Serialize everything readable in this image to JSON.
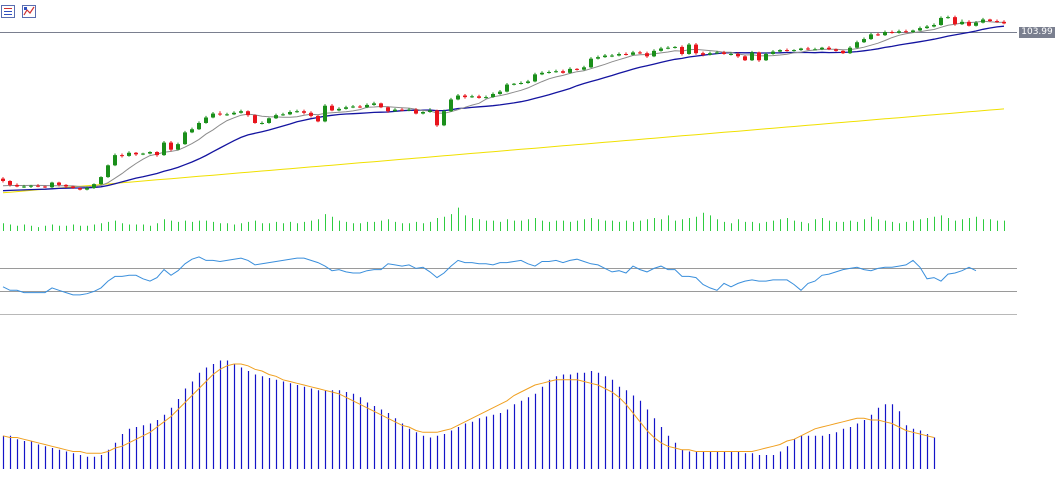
{
  "toolbar": {
    "buttons": [
      {
        "icon": "indicator-list-icon"
      },
      {
        "icon": "chart-properties-icon"
      }
    ]
  },
  "colors": {
    "bull": "#1a8f1a",
    "bear": "#e8141c",
    "ma_fast": "#8c8c8c",
    "ma_mid": "#1414a0",
    "ma_slow": "#f0e000",
    "volume": "#2ecc40",
    "rsi": "#3a8fdc",
    "level_lines": "#9a9a9a",
    "histogram": "#1414c8",
    "signal": "#f0a020",
    "price_line": "#7a7f8f"
  },
  "chart_data": {
    "type": "candlestick",
    "last_price_label": "103.99",
    "candles": [
      [
        40,
        37,
        35,
        42
      ],
      [
        37,
        32,
        30,
        38
      ],
      [
        32,
        30,
        29,
        34
      ],
      [
        30,
        30,
        28,
        32
      ],
      [
        30,
        31,
        28,
        32
      ],
      [
        31,
        30,
        29,
        33
      ],
      [
        30,
        29,
        28,
        31
      ],
      [
        29,
        35,
        28,
        36
      ],
      [
        35,
        32,
        30,
        36
      ],
      [
        32,
        30,
        28,
        33
      ],
      [
        30,
        28,
        27,
        31
      ],
      [
        28,
        26,
        25,
        29
      ],
      [
        26,
        28,
        25,
        30
      ],
      [
        28,
        33,
        27,
        34
      ],
      [
        33,
        42,
        32,
        43
      ],
      [
        42,
        57,
        41,
        58
      ],
      [
        57,
        70,
        56,
        72
      ],
      [
        70,
        69,
        67,
        72
      ],
      [
        69,
        73,
        68,
        75
      ],
      [
        73,
        71,
        69,
        74
      ],
      [
        71,
        72,
        70,
        73
      ],
      [
        72,
        74,
        71,
        75
      ],
      [
        74,
        70,
        68,
        75
      ],
      [
        70,
        86,
        69,
        88
      ],
      [
        86,
        77,
        75,
        88
      ],
      [
        77,
        84,
        76,
        86
      ],
      [
        84,
        99,
        83,
        101
      ],
      [
        99,
        103,
        98,
        105
      ],
      [
        103,
        111,
        102,
        113
      ],
      [
        111,
        118,
        110,
        120
      ],
      [
        118,
        123,
        117,
        125
      ],
      [
        123,
        122,
        120,
        126
      ],
      [
        122,
        122,
        120,
        124
      ],
      [
        122,
        124,
        121,
        126
      ],
      [
        124,
        126,
        123,
        128
      ],
      [
        126,
        121,
        119,
        127
      ],
      [
        121,
        111,
        110,
        122
      ],
      [
        111,
        111,
        109,
        113
      ],
      [
        111,
        117,
        110,
        118
      ],
      [
        117,
        121,
        116,
        123
      ],
      [
        121,
        122,
        120,
        124
      ],
      [
        122,
        125,
        121,
        127
      ],
      [
        125,
        126,
        124,
        128
      ],
      [
        126,
        124,
        122,
        128
      ],
      [
        124,
        120,
        118,
        126
      ],
      [
        120,
        113,
        112,
        121
      ],
      [
        113,
        133,
        112,
        135
      ],
      [
        133,
        127,
        126,
        135
      ],
      [
        127,
        129,
        126,
        131
      ],
      [
        129,
        131,
        128,
        133
      ],
      [
        131,
        132,
        130,
        134
      ],
      [
        132,
        131,
        130,
        134
      ],
      [
        131,
        134,
        130,
        136
      ],
      [
        134,
        136,
        133,
        138
      ],
      [
        136,
        131,
        130,
        137
      ],
      [
        131,
        126,
        124,
        132
      ],
      [
        126,
        128,
        125,
        130
      ],
      [
        128,
        127,
        126,
        130
      ],
      [
        127,
        128,
        126,
        130
      ],
      [
        128,
        123,
        122,
        130
      ],
      [
        123,
        125,
        122,
        126
      ],
      [
        125,
        127,
        124,
        130
      ],
      [
        127,
        108,
        106,
        128
      ],
      [
        108,
        126,
        107,
        128
      ],
      [
        126,
        141,
        125,
        143
      ],
      [
        141,
        146,
        140,
        148
      ],
      [
        146,
        144,
        142,
        148
      ],
      [
        144,
        145,
        143,
        147
      ],
      [
        145,
        143,
        142,
        147
      ],
      [
        143,
        144,
        142,
        146
      ],
      [
        144,
        148,
        143,
        150
      ],
      [
        148,
        151,
        147,
        153
      ],
      [
        151,
        160,
        150,
        162
      ],
      [
        160,
        161,
        159,
        162
      ],
      [
        161,
        162,
        160,
        164
      ],
      [
        162,
        164,
        161,
        166
      ],
      [
        164,
        173,
        163,
        175
      ],
      [
        173,
        175,
        172,
        177
      ],
      [
        175,
        176,
        174,
        178
      ],
      [
        176,
        177,
        175,
        179
      ],
      [
        177,
        175,
        174,
        179
      ],
      [
        175,
        180,
        174,
        182
      ],
      [
        180,
        179,
        178,
        181
      ],
      [
        179,
        182,
        178,
        184
      ],
      [
        182,
        193,
        181,
        195
      ],
      [
        193,
        195,
        192,
        197
      ],
      [
        195,
        197,
        194,
        199
      ],
      [
        197,
        197,
        195,
        199
      ],
      [
        197,
        199,
        196,
        201
      ],
      [
        199,
        198,
        197,
        201
      ],
      [
        198,
        201,
        197,
        203
      ],
      [
        201,
        200,
        199,
        203
      ],
      [
        200,
        196,
        194,
        202
      ],
      [
        196,
        203,
        195,
        205
      ],
      [
        203,
        206,
        202,
        208
      ],
      [
        206,
        207,
        205,
        209
      ],
      [
        207,
        208,
        206,
        209
      ],
      [
        208,
        199,
        197,
        210
      ],
      [
        199,
        211,
        198,
        213
      ],
      [
        211,
        200,
        198,
        213
      ],
      [
        200,
        198,
        196,
        202
      ],
      [
        198,
        200,
        197,
        202
      ],
      [
        200,
        201,
        199,
        203
      ],
      [
        201,
        199,
        198,
        203
      ],
      [
        199,
        199,
        197,
        201
      ],
      [
        199,
        196,
        194,
        201
      ],
      [
        196,
        191,
        190,
        197
      ],
      [
        191,
        201,
        190,
        203
      ],
      [
        201,
        191,
        189,
        202
      ],
      [
        191,
        199,
        190,
        201
      ],
      [
        199,
        202,
        198,
        204
      ],
      [
        202,
        204,
        201,
        205
      ],
      [
        204,
        203,
        202,
        206
      ],
      [
        203,
        204,
        202,
        205
      ],
      [
        204,
        206,
        203,
        207
      ],
      [
        206,
        205,
        204,
        208
      ],
      [
        205,
        205,
        204,
        207
      ],
      [
        205,
        207,
        204,
        208
      ],
      [
        207,
        205,
        204,
        209
      ],
      [
        205,
        203,
        202,
        206
      ],
      [
        203,
        200,
        199,
        204
      ],
      [
        200,
        207,
        199,
        209
      ],
      [
        207,
        214,
        206,
        216
      ],
      [
        214,
        218,
        213,
        220
      ],
      [
        218,
        224,
        217,
        226
      ],
      [
        224,
        223,
        222,
        226
      ],
      [
        223,
        227,
        222,
        229
      ],
      [
        227,
        226,
        225,
        229
      ],
      [
        226,
        228,
        225,
        230
      ],
      [
        228,
        227,
        226,
        230
      ],
      [
        227,
        229,
        226,
        230
      ],
      [
        229,
        232,
        228,
        234
      ],
      [
        232,
        234,
        231,
        236
      ],
      [
        234,
        236,
        233,
        238
      ],
      [
        236,
        245,
        235,
        247
      ],
      [
        245,
        246,
        244,
        248
      ],
      [
        246,
        237,
        235,
        248
      ],
      [
        237,
        240,
        236,
        243
      ],
      [
        240,
        235,
        234,
        242
      ],
      [
        235,
        239,
        234,
        241
      ],
      [
        239,
        243,
        238,
        245
      ],
      [
        243,
        241,
        240,
        244
      ],
      [
        241,
        240,
        239,
        243
      ],
      [
        240,
        238,
        237,
        242
      ]
    ],
    "volume": [
      6,
      5,
      4,
      5,
      4,
      3,
      4,
      5,
      4,
      4,
      5,
      4,
      4,
      5,
      6,
      7,
      8,
      6,
      5,
      5,
      5,
      4,
      6,
      9,
      8,
      7,
      8,
      7,
      8,
      8,
      7,
      6,
      6,
      5,
      6,
      7,
      8,
      6,
      6,
      7,
      6,
      7,
      6,
      7,
      8,
      9,
      13,
      11,
      8,
      7,
      6,
      6,
      7,
      7,
      8,
      9,
      7,
      6,
      6,
      7,
      6,
      7,
      10,
      11,
      13,
      18,
      12,
      10,
      9,
      8,
      8,
      7,
      9,
      8,
      8,
      9,
      10,
      8,
      7,
      8,
      8,
      7,
      8,
      9,
      10,
      9,
      8,
      8,
      7,
      8,
      7,
      8,
      9,
      10,
      9,
      12,
      8,
      9,
      10,
      11,
      14,
      12,
      9,
      7,
      6,
      9,
      7,
      7,
      6,
      7,
      8,
      9,
      10,
      8,
      7,
      6,
      9,
      10,
      8,
      7,
      7,
      8,
      7,
      9,
      11,
      9,
      8,
      7,
      6,
      7,
      8,
      9,
      10,
      11,
      12,
      10,
      8,
      9,
      10,
      11,
      9,
      9,
      8,
      8
    ],
    "rsi": [
      52,
      55,
      55,
      57,
      57,
      57,
      57,
      53,
      55,
      57,
      59,
      59,
      58,
      56,
      53,
      47,
      43,
      43,
      42,
      42,
      45,
      47,
      44,
      37,
      42,
      38,
      32,
      28,
      26,
      29,
      29,
      30,
      29,
      28,
      27,
      29,
      33,
      32,
      31,
      30,
      29,
      28,
      27,
      27,
      29,
      31,
      34,
      38,
      37,
      39,
      40,
      40,
      38,
      37,
      37,
      32,
      33,
      34,
      33,
      36,
      35,
      39,
      44,
      40,
      34,
      29,
      31,
      31,
      32,
      32,
      33,
      31,
      31,
      30,
      29,
      32,
      34,
      30,
      30,
      29,
      31,
      29,
      28,
      30,
      32,
      33,
      36,
      39,
      38,
      40,
      34,
      37,
      39,
      36,
      34,
      37,
      37,
      43,
      43,
      44,
      50,
      53,
      55,
      49,
      52,
      49,
      47,
      46,
      47,
      47,
      46,
      46,
      46,
      50,
      55,
      49,
      47,
      42,
      41,
      39,
      37,
      36,
      35,
      37,
      38,
      36,
      35,
      35,
      34,
      33,
      29,
      35,
      45,
      44,
      47,
      41,
      40,
      38,
      35,
      38
    ],
    "rsi_levels": [
      70,
      30
    ],
    "histogram": [
      0.19,
      0.19,
      0.17,
      0.16,
      0.16,
      0.14,
      0.13,
      0.12,
      0.11,
      0.1,
      0.09,
      0.08,
      0.07,
      0.07,
      0.08,
      0.11,
      0.15,
      0.2,
      0.23,
      0.24,
      0.25,
      0.26,
      0.28,
      0.31,
      0.35,
      0.4,
      0.46,
      0.5,
      0.55,
      0.58,
      0.6,
      0.62,
      0.62,
      0.6,
      0.58,
      0.56,
      0.54,
      0.53,
      0.52,
      0.51,
      0.5,
      0.49,
      0.48,
      0.47,
      0.46,
      0.45,
      0.45,
      0.45,
      0.45,
      0.44,
      0.43,
      0.41,
      0.38,
      0.36,
      0.34,
      0.32,
      0.29,
      0.26,
      0.23,
      0.21,
      0.19,
      0.18,
      0.19,
      0.2,
      0.22,
      0.24,
      0.26,
      0.27,
      0.29,
      0.3,
      0.31,
      0.32,
      0.34,
      0.37,
      0.39,
      0.41,
      0.43,
      0.47,
      0.51,
      0.53,
      0.54,
      0.54,
      0.55,
      0.55,
      0.56,
      0.55,
      0.53,
      0.51,
      0.47,
      0.45,
      0.42,
      0.39,
      0.34,
      0.29,
      0.24,
      0.19,
      0.15,
      0.11,
      0.1,
      0.1,
      0.1,
      0.1,
      0.1,
      0.1,
      0.1,
      0.1,
      0.09,
      0.09,
      0.08,
      0.08,
      0.08,
      0.1,
      0.13,
      0.17,
      0.19,
      0.19,
      0.19,
      0.19,
      0.2,
      0.21,
      0.23,
      0.24,
      0.26,
      0.28,
      0.31,
      0.35,
      0.37,
      0.37,
      0.33,
      0.25,
      0.23,
      0.22,
      0.2,
      0.18
    ],
    "signal": [
      0.19,
      0.18,
      0.18,
      0.17,
      0.16,
      0.15,
      0.14,
      0.13,
      0.12,
      0.11,
      0.1,
      0.1,
      0.09,
      0.09,
      0.09,
      0.1,
      0.12,
      0.13,
      0.15,
      0.17,
      0.19,
      0.21,
      0.24,
      0.27,
      0.3,
      0.34,
      0.38,
      0.42,
      0.46,
      0.5,
      0.54,
      0.57,
      0.59,
      0.6,
      0.6,
      0.59,
      0.57,
      0.56,
      0.54,
      0.53,
      0.51,
      0.5,
      0.49,
      0.48,
      0.47,
      0.46,
      0.45,
      0.44,
      0.43,
      0.41,
      0.39,
      0.37,
      0.35,
      0.33,
      0.31,
      0.29,
      0.27,
      0.25,
      0.24,
      0.22,
      0.21,
      0.21,
      0.21,
      0.22,
      0.23,
      0.25,
      0.27,
      0.29,
      0.31,
      0.33,
      0.35,
      0.37,
      0.39,
      0.42,
      0.44,
      0.46,
      0.48,
      0.49,
      0.5,
      0.51,
      0.51,
      0.51,
      0.51,
      0.5,
      0.49,
      0.48,
      0.46,
      0.44,
      0.41,
      0.37,
      0.32,
      0.27,
      0.22,
      0.18,
      0.15,
      0.13,
      0.12,
      0.11,
      0.11,
      0.1,
      0.1,
      0.1,
      0.1,
      0.1,
      0.1,
      0.1,
      0.1,
      0.1,
      0.11,
      0.12,
      0.13,
      0.14,
      0.16,
      0.17,
      0.19,
      0.21,
      0.23,
      0.24,
      0.25,
      0.26,
      0.27,
      0.28,
      0.29,
      0.29,
      0.28,
      0.28,
      0.27,
      0.26,
      0.24,
      0.22,
      0.21,
      0.2,
      0.19,
      0.18
    ]
  }
}
